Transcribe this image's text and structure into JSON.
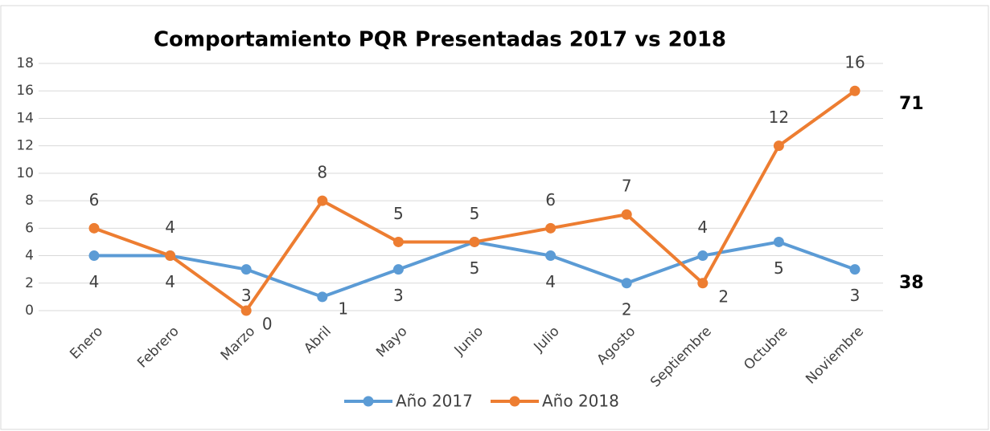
{
  "chart_data": {
    "type": "line",
    "title": "Comportamiento PQR Presentadas 2017 vs 2018",
    "categories": [
      "Enero",
      "Febrero",
      "Marzo",
      "Abril",
      "Mayo",
      "Junio",
      "Julio",
      "Agosto",
      "Septiembre",
      "Octubre",
      "Noviembre"
    ],
    "series": [
      {
        "name": "Año 2017",
        "color": "#5b9bd5",
        "values": [
          4,
          4,
          3,
          1,
          3,
          5,
          4,
          2,
          4,
          5,
          3
        ]
      },
      {
        "name": "Año 2018",
        "color": "#ed7d31",
        "values": [
          6,
          4,
          0,
          8,
          5,
          5,
          6,
          7,
          2,
          12,
          16
        ]
      }
    ],
    "ylim": [
      0,
      18
    ],
    "yticks": [
      0,
      2,
      4,
      6,
      8,
      10,
      12,
      14,
      16,
      18
    ],
    "grid": true,
    "legend": "bottom",
    "annotations": [
      "71",
      "38"
    ]
  }
}
